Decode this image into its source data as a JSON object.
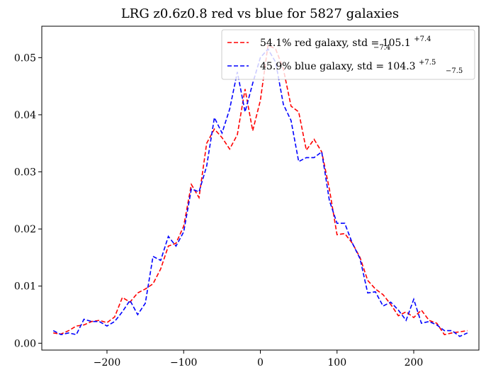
{
  "chart_data": {
    "type": "line",
    "title": "LRG z0.6z0.8 red vs blue for 5827 galaxies",
    "xlabel": "",
    "ylabel": "",
    "xlim": [
      -285,
      285
    ],
    "ylim": [
      -0.0012,
      0.0555
    ],
    "xticks": [
      -200,
      -100,
      0,
      100,
      200
    ],
    "xtick_labels": [
      "−200",
      "−100",
      "0",
      "100",
      "200"
    ],
    "yticks": [
      0.0,
      0.01,
      0.02,
      0.03,
      0.04,
      0.05
    ],
    "ytick_labels": [
      "0.00",
      "0.01",
      "0.02",
      "0.03",
      "0.04",
      "0.05"
    ],
    "grid": false,
    "legend_position": "top-right",
    "series": [
      {
        "name": "54.1% red galaxy, std = 105.1",
        "legend_main": "54.1% red galaxy, std = 105.1",
        "legend_sup": "+7.4",
        "legend_sub": "−7.4",
        "color": "#ff0000",
        "linestyle": "dashed",
        "x": [
          -270,
          -260,
          -250,
          -240,
          -230,
          -220,
          -210,
          -200,
          -190,
          -180,
          -170,
          -160,
          -150,
          -140,
          -130,
          -120,
          -110,
          -100,
          -90,
          -80,
          -70,
          -60,
          -50,
          -40,
          -30,
          -20,
          -10,
          0,
          10,
          20,
          30,
          40,
          50,
          60,
          70,
          80,
          90,
          100,
          110,
          120,
          130,
          140,
          150,
          160,
          170,
          180,
          190,
          200,
          210,
          220,
          230,
          240,
          250,
          260,
          270
        ],
        "y": [
          0.0018,
          0.0016,
          0.0022,
          0.003,
          0.0032,
          0.0038,
          0.004,
          0.0036,
          0.0046,
          0.008,
          0.0072,
          0.0088,
          0.0095,
          0.0104,
          0.013,
          0.017,
          0.0175,
          0.0205,
          0.0278,
          0.0255,
          0.035,
          0.0375,
          0.036,
          0.034,
          0.0365,
          0.0445,
          0.0372,
          0.0425,
          0.0522,
          0.0515,
          0.048,
          0.0415,
          0.0405,
          0.0338,
          0.0357,
          0.0335,
          0.027,
          0.019,
          0.0192,
          0.0175,
          0.015,
          0.011,
          0.0095,
          0.0085,
          0.0068,
          0.0048,
          0.0055,
          0.0045,
          0.0058,
          0.004,
          0.0035,
          0.0015,
          0.0018,
          0.002,
          0.0022
        ]
      },
      {
        "name": "45.9% blue galaxy, std = 104.3",
        "legend_main": "45.9% blue galaxy, std = 104.3",
        "legend_sup": "+7.5",
        "legend_sub": "−7.5",
        "color": "#0000ff",
        "linestyle": "dashed",
        "x": [
          -270,
          -260,
          -250,
          -240,
          -230,
          -220,
          -210,
          -200,
          -190,
          -180,
          -170,
          -160,
          -150,
          -140,
          -130,
          -120,
          -110,
          -100,
          -90,
          -80,
          -70,
          -60,
          -50,
          -40,
          -30,
          -20,
          -10,
          0,
          10,
          20,
          30,
          40,
          50,
          60,
          70,
          80,
          90,
          100,
          110,
          120,
          130,
          140,
          150,
          160,
          170,
          180,
          190,
          200,
          210,
          220,
          230,
          240,
          250,
          260,
          270
        ],
        "y": [
          0.0022,
          0.0015,
          0.0018,
          0.0015,
          0.0042,
          0.0038,
          0.0038,
          0.003,
          0.0038,
          0.0055,
          0.0075,
          0.005,
          0.007,
          0.0152,
          0.0145,
          0.0187,
          0.017,
          0.0195,
          0.027,
          0.0265,
          0.031,
          0.0395,
          0.0368,
          0.041,
          0.0475,
          0.0405,
          0.0455,
          0.05,
          0.0515,
          0.0492,
          0.0418,
          0.039,
          0.0318,
          0.0325,
          0.0325,
          0.0335,
          0.025,
          0.021,
          0.021,
          0.0175,
          0.0148,
          0.0088,
          0.009,
          0.0065,
          0.0072,
          0.0058,
          0.004,
          0.0077,
          0.0035,
          0.0038,
          0.0032,
          0.0022,
          0.0022,
          0.0012,
          0.0018
        ]
      }
    ]
  }
}
